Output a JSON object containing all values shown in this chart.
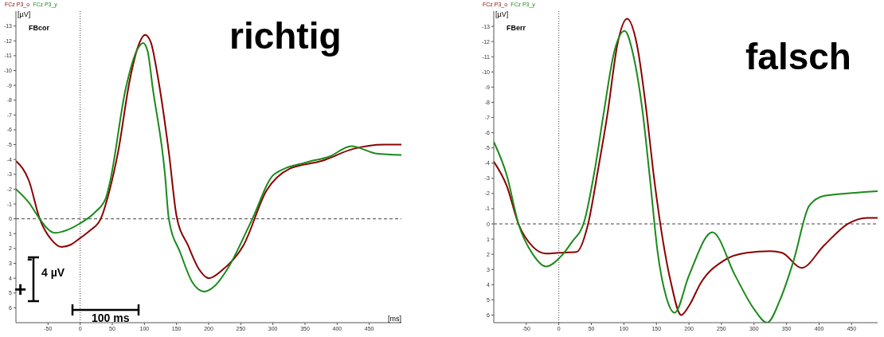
{
  "chart_data": [
    {
      "type": "line",
      "title": "FBcor",
      "xlabel": "[ms]",
      "ylabel": "[µV]",
      "legend": "top left",
      "marker": "none",
      "line_style": "solid",
      "annotations": [
        "richtig",
        "-",
        "+",
        "4 µV",
        "100 ms"
      ],
      "xlim": [
        -100,
        500
      ],
      "xticks": [
        -50,
        0,
        50,
        100,
        150,
        200,
        250,
        300,
        350,
        400,
        450
      ],
      "ylim": [
        7,
        -14
      ],
      "yticks": [
        -13,
        -12,
        -11,
        -10,
        -9,
        -8,
        -7,
        -6,
        -5,
        -4,
        -3,
        -2,
        -1,
        0,
        1,
        2,
        3,
        4,
        5,
        6
      ],
      "ref_lines": [
        {
          "axis": "x",
          "value": 0,
          "line_style": "dotted"
        },
        {
          "axis": "y",
          "value": 0,
          "line_style": "dashed"
        }
      ],
      "series": [
        {
          "name": "FCz P3_o",
          "color": "#8b0000",
          "x": [
            -100,
            -80,
            -63,
            -45,
            -29,
            -15,
            0,
            15,
            32,
            45,
            59,
            77,
            90,
            101,
            110,
            120,
            138,
            150,
            168,
            185,
            201,
            220,
            254,
            290,
            327,
            376,
            424,
            473,
            500
          ],
          "values": [
            -3.9,
            -2.6,
            0,
            1.4,
            1.9,
            1.75,
            1.3,
            0.8,
            0,
            -1.8,
            -4.5,
            -9.3,
            -11.6,
            -12.4,
            -11.9,
            -9.8,
            -4.5,
            -0.2,
            1.8,
            3.4,
            4.0,
            3.5,
            1.8,
            -1.9,
            -3.4,
            -3.9,
            -4.7,
            -5.0,
            -5.0
          ]
        },
        {
          "name": "FCz P3_y",
          "color": "#1a8a1a",
          "x": [
            -100,
            -80,
            -63,
            -50,
            -39,
            -20,
            0,
            22,
            40,
            46,
            71,
            90,
            98,
            105,
            113,
            132,
            138,
            156,
            175,
            193,
            210,
            229,
            266,
            302,
            351,
            388,
            422,
            461,
            500
          ],
          "values": [
            -2.0,
            -1.1,
            0,
            0.7,
            0.95,
            0.75,
            0.3,
            -0.4,
            -1.4,
            -2.4,
            -8.8,
            -11.5,
            -11.85,
            -11.3,
            -8.8,
            -3.0,
            0,
            2.3,
            4.3,
            4.9,
            4.5,
            3.4,
            0.2,
            -3.0,
            -3.8,
            -4.2,
            -4.9,
            -4.4,
            -4.3
          ]
        }
      ]
    },
    {
      "type": "line",
      "title": "FBerr",
      "ylabel": "[µV]",
      "legend": "top left",
      "marker": "none",
      "line_style": "solid",
      "annotations": [
        "falsch"
      ],
      "xlim": [
        -100,
        490
      ],
      "xticks": [
        -50,
        0,
        50,
        100,
        150,
        200,
        250,
        300,
        350,
        400,
        450
      ],
      "ylim": [
        6.5,
        -14
      ],
      "yticks": [
        -13,
        -12,
        -11,
        -10,
        -9,
        -8,
        -7,
        -6,
        -5,
        -4,
        -3,
        -2,
        -1,
        0,
        1,
        2,
        3,
        4,
        5,
        6
      ],
      "ref_lines": [
        {
          "axis": "x",
          "value": 0,
          "line_style": "dotted"
        },
        {
          "axis": "y",
          "value": 0,
          "line_style": "dashed"
        }
      ],
      "series": [
        {
          "name": "FCz P3_o",
          "color": "#8b0000",
          "x": [
            -100,
            -80,
            -62,
            -40,
            -20,
            0,
            27,
            45,
            60,
            75,
            90,
            105,
            120,
            135,
            145,
            156,
            172,
            188,
            200,
            218,
            254,
            289,
            325,
            343,
            373,
            408,
            444,
            474,
            490
          ],
          "values": [
            -4.1,
            -2.5,
            0,
            1.5,
            1.95,
            1.9,
            1.85,
            0,
            -3.5,
            -7.3,
            -11.8,
            -13.5,
            -11.8,
            -7.3,
            -3.5,
            0,
            3.8,
            6.0,
            5.4,
            3.9,
            2.4,
            1.9,
            1.8,
            1.9,
            2.9,
            1.4,
            0,
            -0.4,
            -0.4
          ]
        },
        {
          "name": "FCz P3_y",
          "color": "#1a8a1a",
          "x": [
            -100,
            -80,
            -62,
            -40,
            -20,
            4,
            20,
            39,
            55,
            69,
            85,
            101,
            115,
            129,
            140,
            152,
            165,
            178,
            200,
            236,
            271,
            300,
            320,
            340,
            361,
            385,
            408,
            456,
            490
          ],
          "values": [
            -5.4,
            -3.2,
            0,
            2.0,
            2.8,
            2.1,
            1.2,
            -0.15,
            -3.5,
            -7.3,
            -11.3,
            -12.7,
            -11.0,
            -7.3,
            -3.0,
            1.9,
            4.8,
            5.85,
            3.4,
            0.55,
            3.4,
            5.6,
            6.5,
            5.0,
            2.4,
            -1.2,
            -1.85,
            -2.05,
            -2.15
          ]
        }
      ]
    }
  ]
}
